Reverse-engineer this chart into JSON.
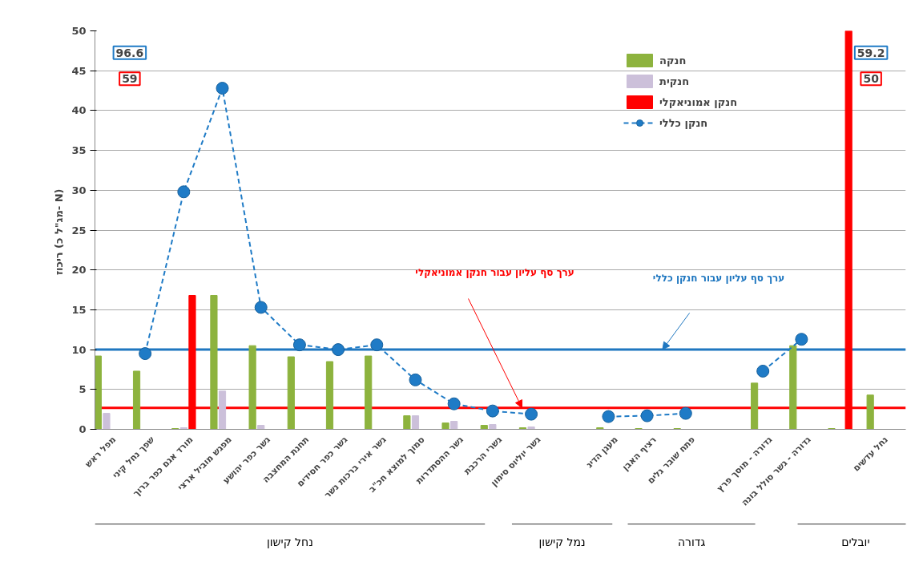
{
  "chart_data": {
    "type": "bar",
    "ylabel": "ריכוז  (מג\"ל כ- N)",
    "categories": [
      "מפל ראש",
      "שפך נחל קיני",
      "מורד אגם כפר ברוך",
      "מפגש מוביל ארצי",
      "גשר כפר יהושע",
      "תחנת המחצבה",
      "גשר כפר חסידים",
      "גשר אירי ברכות נשר",
      "סמוך למוצא חכ\"ב",
      "גשר ההסתדרות",
      "גשרי הרכבת",
      "גשר יוליוס סימון",
      null,
      "מעגן הדיג",
      "רציף האבן",
      "פתח שובר גלים",
      null,
      "גדורה - מוסך פרץ",
      "גדורה - גשר סולל בונה",
      null,
      "נחל עדשים"
    ],
    "series": [
      {
        "name": "חנקה",
        "color": "#8db33e",
        "values": [
          9.2,
          7.3,
          0.1,
          16.8,
          10.5,
          9.1,
          8.5,
          9.2,
          1.7,
          0.8,
          0.5,
          0.2,
          null,
          0.2,
          0.1,
          0.1,
          null,
          5.8,
          10.5,
          0.1,
          4.3
        ]
      },
      {
        "name": "חנקית",
        "color": "#ccc0da",
        "values": [
          2.0,
          null,
          0.2,
          4.8,
          0.5,
          null,
          null,
          null,
          1.7,
          1.0,
          0.6,
          0.3,
          null,
          null,
          null,
          null,
          null,
          null,
          null,
          null,
          null
        ]
      },
      {
        "name": "חנקן אמוניאקלי",
        "color": "#ff0000",
        "values": [
          null,
          null,
          16.8,
          null,
          null,
          null,
          null,
          null,
          null,
          null,
          null,
          null,
          null,
          null,
          null,
          null,
          null,
          null,
          null,
          50,
          null
        ]
      },
      {
        "name": "חנקן כללי",
        "type": "line",
        "color": "#1f7bc6",
        "marker": "circle",
        "line_style": "dashed",
        "values": [
          null,
          9.5,
          29.8,
          42.8,
          15.3,
          10.6,
          10.0,
          10.6,
          6.2,
          3.2,
          2.3,
          1.9,
          null,
          1.6,
          1.7,
          2.0,
          null,
          7.3,
          11.3,
          null,
          null
        ]
      }
    ],
    "ylim": [
      0,
      50
    ],
    "yticks": [
      0,
      5,
      10,
      15,
      20,
      25,
      30,
      35,
      40,
      45,
      50
    ],
    "grid": "y",
    "legend": "top right",
    "ref_lines": [
      {
        "axis": "y",
        "value": 2.7,
        "label": "ערך סף עליון  עבור חנקן אמוניאקלי",
        "color": "#ff0000"
      },
      {
        "axis": "y",
        "value": 10,
        "label": "ערך סף עליון  עבור חנקן כללי",
        "color": "#1f77c0"
      }
    ],
    "annotations": [
      "נחל קישון",
      "נמל קישון",
      "גדורה",
      "יובלים",
      "96.6",
      "59",
      "59.2",
      "50"
    ]
  }
}
